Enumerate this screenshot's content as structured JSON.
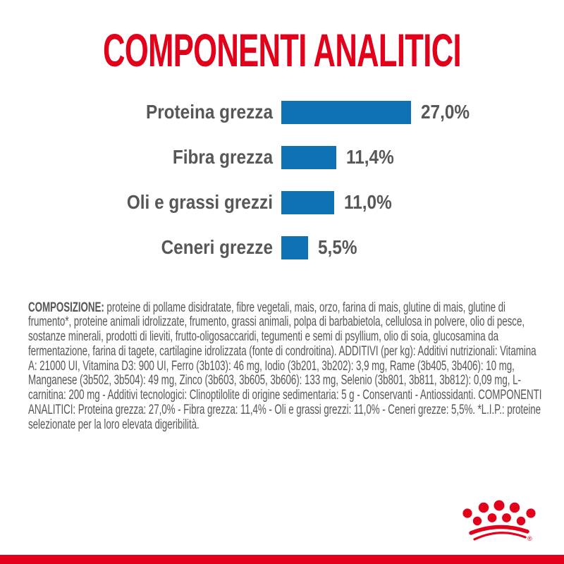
{
  "title": "COMPONENTI ANALITICI",
  "colors": {
    "red": "#E2001A",
    "blue": "#0F72B5",
    "gray": "#575756"
  },
  "chart_data": {
    "type": "bar",
    "orientation": "horizontal",
    "title": "COMPONENTI ANALITICI",
    "categories": [
      "Proteina grezza",
      "Fibra grezza",
      "Oli e grassi grezzi",
      "Ceneri grezze"
    ],
    "values": [
      27.0,
      11.4,
      11.0,
      5.5
    ],
    "value_labels": [
      "27,0%",
      "11,4%",
      "11,0%",
      "5,5%"
    ],
    "unit": "%",
    "xlim": [
      0,
      30
    ],
    "grid": false,
    "legend": false,
    "bar_color": "#0F72B5"
  },
  "composition": {
    "label": "COMPOSIZIONE:",
    "text": "proteine di pollame disidratate, fibre vegetali, mais, orzo, farina di mais, glutine di mais, glutine di frumento*, proteine animali idrolizzate, frumento, grassi animali, polpa di barbabietola, cellulosa in polvere, olio di pesce, sostanze minerali, prodotti di lieviti, frutto-oligosaccaridi, tegumenti e semi di psyllium, olio di soia, glucosamina da fermentazione, farina di tagete, cartilagine idrolizzata (fonte di condroitina). ADDITIVI (per kg): Additivi nutrizionali: Vitamina A: 21000 UI, Vitamina D3: 900 UI, Ferro (3b103): 46 mg, Iodio (3b201, 3b202): 3,9 mg, Rame (3b405, 3b406): 10 mg, Manganese (3b502, 3b504): 49 mg, Zinco (3b603, 3b605, 3b606): 133 mg, Selenio (3b801, 3b811, 3b812): 0,09 mg, L-carnitina: 200 mg - Additivi tecnologici: Clinoptilolite di origine sedimentaria: 5 g - Conservanti - Antiossidanti. COMPONENTI ANALITICI: Proteina grezza: 27,0% - Fibra grezza: 11,4% - Oli e grassi grezzi: 11,0% - Ceneri grezze: 5,5%. *L.I.P.: proteine selezionate per la loro elevata digeribilità."
  },
  "logo": {
    "name": "Royal Canin crown",
    "registered_mark": "®"
  }
}
